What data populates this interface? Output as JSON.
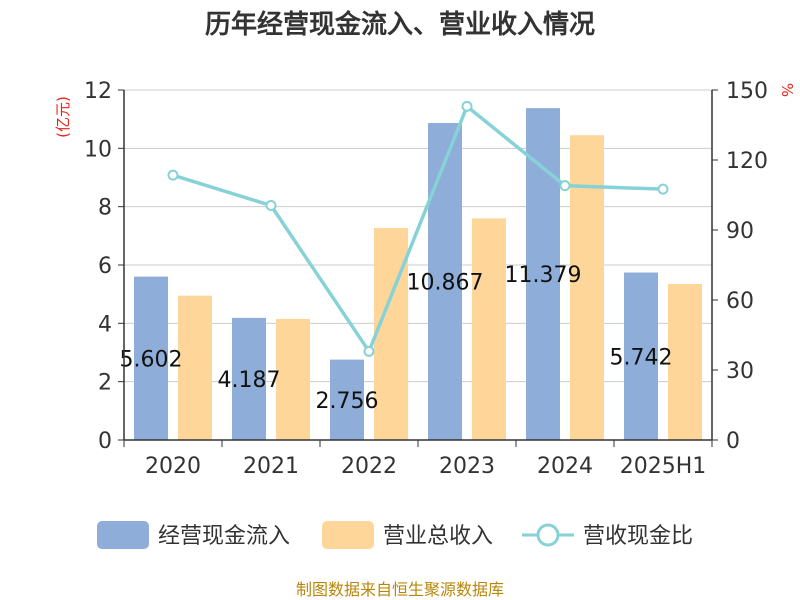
{
  "chart_data": {
    "type": "bar",
    "title": "历年经营现金流入、营业收入情况",
    "categories": [
      "2020",
      "2021",
      "2022",
      "2023",
      "2024",
      "2025H1"
    ],
    "left_axis": {
      "unit": "(亿元)",
      "ylim": [
        0,
        12
      ],
      "ticks": [
        "0",
        "2",
        "4",
        "6",
        "8",
        "10",
        "12"
      ]
    },
    "right_axis": {
      "unit": "%",
      "ylim": [
        0,
        150
      ],
      "ticks": [
        "0",
        "30",
        "60",
        "90",
        "120",
        "150"
      ]
    },
    "series": [
      {
        "name": "经营现金流入",
        "type": "bar",
        "axis": "left",
        "color": "#8eadd9",
        "values": [
          5.602,
          4.187,
          2.756,
          10.867,
          11.379,
          5.742
        ],
        "labels": [
          "5.602",
          "4.187",
          "2.756",
          "10.867",
          "11.379",
          "5.742"
        ]
      },
      {
        "name": "营业总收入",
        "type": "bar",
        "axis": "left",
        "color": "#ffd699",
        "values": [
          4.95,
          4.15,
          7.27,
          7.6,
          10.45,
          5.35
        ]
      },
      {
        "name": "营收现金比",
        "type": "line",
        "axis": "right",
        "color": "#86d2d6",
        "values": [
          113.5,
          100.5,
          38.0,
          143.0,
          109.0,
          107.5
        ]
      }
    ],
    "grid": true,
    "legend_position": "bottom"
  },
  "source": "制图数据来自恒生聚源数据库"
}
